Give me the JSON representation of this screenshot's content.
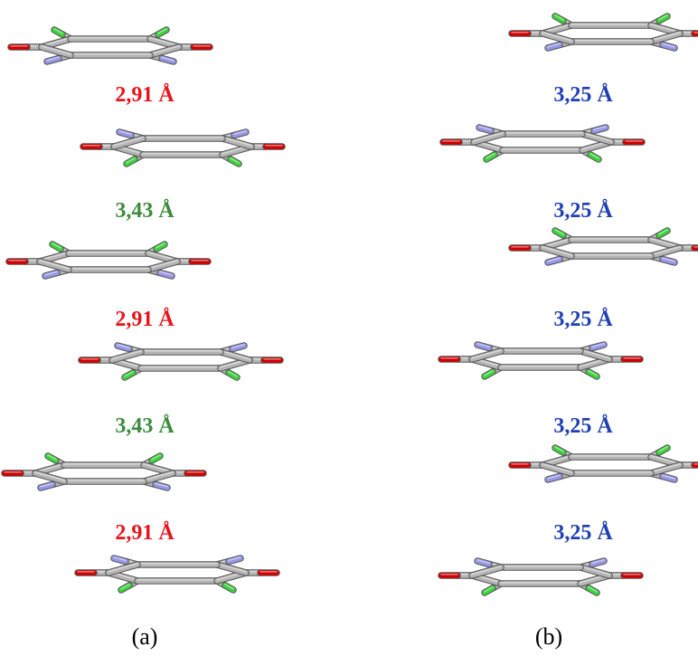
{
  "colors": {
    "red_label": "#e8141c",
    "green_label": "#3d8b3d",
    "blue_label": "#1f3fb4",
    "ring": "#b4b4b4",
    "oxygen": "#d20000",
    "chlorine": "#3cd23c",
    "nitrogen": "#9696e6"
  },
  "panels": {
    "a": {
      "label": "(a)",
      "distances": [
        "2,91 Å",
        "3,43 Å",
        "2,91 Å",
        "3,43 Å",
        "2,91 Å"
      ],
      "distance_colors": [
        "red",
        "green",
        "red",
        "green",
        "red"
      ]
    },
    "b": {
      "label": "(b)",
      "distances": [
        "3,25 Å",
        "3,25 Å",
        "3,25 Å",
        "3,25 Å",
        "3,25 Å"
      ],
      "distance_colors": [
        "blue",
        "blue",
        "blue",
        "blue",
        "blue"
      ]
    }
  }
}
